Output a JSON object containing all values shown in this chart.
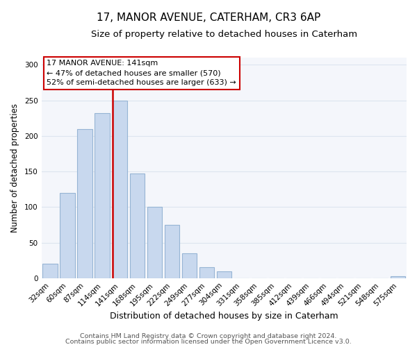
{
  "title": "17, MANOR AVENUE, CATERHAM, CR3 6AP",
  "subtitle": "Size of property relative to detached houses in Caterham",
  "xlabel": "Distribution of detached houses by size in Caterham",
  "ylabel": "Number of detached properties",
  "bar_labels": [
    "32sqm",
    "60sqm",
    "87sqm",
    "114sqm",
    "141sqm",
    "168sqm",
    "195sqm",
    "222sqm",
    "249sqm",
    "277sqm",
    "304sqm",
    "331sqm",
    "358sqm",
    "385sqm",
    "412sqm",
    "439sqm",
    "466sqm",
    "494sqm",
    "521sqm",
    "548sqm",
    "575sqm"
  ],
  "bar_values": [
    20,
    120,
    210,
    232,
    250,
    147,
    100,
    75,
    35,
    15,
    10,
    0,
    0,
    0,
    0,
    0,
    0,
    0,
    0,
    0,
    3
  ],
  "bar_color": "#c8d8ee",
  "bar_edge_color": "#96b4d4",
  "vline_x_index": 4,
  "vline_color": "#cc0000",
  "annotation_title": "17 MANOR AVENUE: 141sqm",
  "annotation_line1": "← 47% of detached houses are smaller (570)",
  "annotation_line2": "52% of semi-detached houses are larger (633) →",
  "annotation_box_facecolor": "#ffffff",
  "annotation_box_edgecolor": "#cc0000",
  "ylim": [
    0,
    310
  ],
  "yticks": [
    0,
    50,
    100,
    150,
    200,
    250,
    300
  ],
  "footer1": "Contains HM Land Registry data © Crown copyright and database right 2024.",
  "footer2": "Contains public sector information licensed under the Open Government Licence v3.0.",
  "fig_facecolor": "#ffffff",
  "plot_facecolor": "#f4f6fb",
  "grid_color": "#dde4ef",
  "title_fontsize": 11,
  "subtitle_fontsize": 9.5,
  "xlabel_fontsize": 9,
  "ylabel_fontsize": 8.5,
  "tick_fontsize": 7.5,
  "footer_fontsize": 6.8
}
